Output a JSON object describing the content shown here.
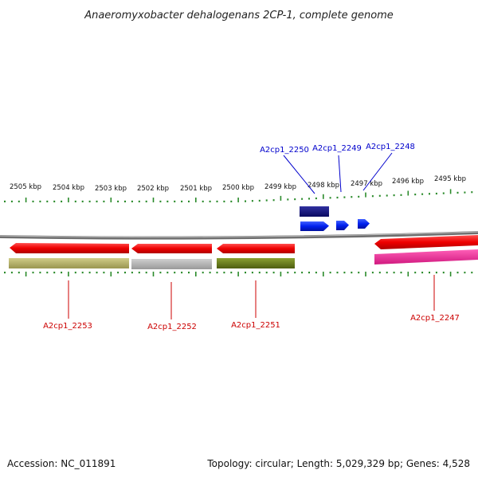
{
  "title": "Anaeromyxobacter dehalogenans 2CP-1, complete genome",
  "footer": {
    "accession": "Accession: NC_011891",
    "summary": "Topology: circular; Length: 5,029,329 bp; Genes: 4,528"
  },
  "scale_labels": [
    "2505 kbp",
    "2504 kbp",
    "2503 kbp",
    "2502 kbp",
    "2501 kbp",
    "2500 kbp",
    "2499 kbp",
    "2498 kbp",
    "2497 kbp",
    "2496 kbp",
    "2495 kbp"
  ],
  "forward_genes": [
    {
      "label": "A2cp1_2250",
      "color": "#0000ff"
    },
    {
      "label": "A2cp1_2249",
      "color": "#0000ff"
    },
    {
      "label": "A2cp1_2248",
      "color": "#0000ff"
    }
  ],
  "reverse_genes": [
    {
      "label": "A2cp1_2253",
      "color": "#ff0000"
    },
    {
      "label": "A2cp1_2252",
      "color": "#ff0000"
    },
    {
      "label": "A2cp1_2251",
      "color": "#ff0000"
    },
    {
      "label": "A2cp1_2247",
      "color": "#ff0000"
    }
  ],
  "colors": {
    "backbone": "#8a8a8a",
    "tick": "#2a8a2a",
    "forward_label": "#0000cc",
    "reverse_label": "#cc0000",
    "cog_navy": "#1a1a80",
    "cog_olive": "#b8b46a",
    "cog_gray": "#b0b0b0",
    "cog_green": "#6b7f1a",
    "cog_magenta": "#ee2a9a"
  }
}
